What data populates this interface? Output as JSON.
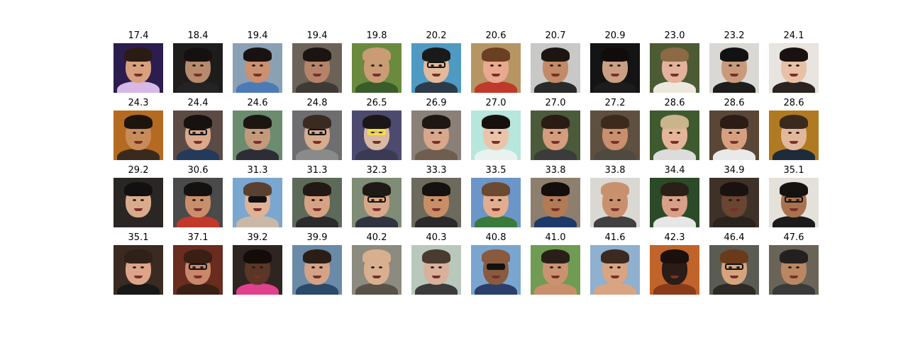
{
  "faces": [
    {
      "label": "17.4",
      "bg": "#2c1d4f",
      "skin": "#d8a07e",
      "hair": "#2a1b14",
      "shirt": "#d7b8e6"
    },
    {
      "label": "18.4",
      "bg": "#1f1d1c",
      "skin": "#b68a6c",
      "hair": "#15110f",
      "shirt": "#232323"
    },
    {
      "label": "19.4",
      "bg": "#8aa0b4",
      "skin": "#c99170",
      "hair": "#1a1210",
      "shirt": "#4b7ab5"
    },
    {
      "label": "19.4",
      "bg": "#6b6358",
      "skin": "#b5836a",
      "hair": "#1b1410",
      "shirt": "#3f3a36"
    },
    {
      "label": "19.8",
      "bg": "#6a8a3e",
      "skin": "#c99c76",
      "hair": "#c99c76",
      "shirt": "#3a5c2a"
    },
    {
      "label": "20.2",
      "bg": "#4f9ac2",
      "skin": "#e2b99a",
      "hair": "#1a1a1a",
      "shirt": "#2b3b4a",
      "glasses": "on"
    },
    {
      "label": "20.6",
      "bg": "#b69564",
      "skin": "#e8a98e",
      "hair": "#6b3f22",
      "shirt": "#c0392b"
    },
    {
      "label": "20.7",
      "bg": "#c8c9c7",
      "skin": "#c28a66",
      "hair": "#1d1512",
      "shirt": "#2a2a2a"
    },
    {
      "label": "20.9",
      "bg": "#141414",
      "skin": "#c9a083",
      "hair": "#0f0c0a",
      "shirt": "#1c1c1c"
    },
    {
      "label": "23.0",
      "bg": "#4d5b34",
      "skin": "#e2b39a",
      "hair": "#8b6a45",
      "shirt": "#ece8dc"
    },
    {
      "label": "23.2",
      "bg": "#d9d8d4",
      "skin": "#c99a7a",
      "hair": "#121212",
      "shirt": "#1d1d1d"
    },
    {
      "label": "24.1",
      "bg": "#e8e4df",
      "skin": "#e7c0a6",
      "hair": "#1a1210",
      "shirt": "#2b2320"
    },
    {
      "label": "24.3",
      "bg": "#b56a22",
      "skin": "#c88b5a",
      "hair": "#1d140e",
      "shirt": "#3a2a1e"
    },
    {
      "label": "24.4",
      "bg": "#5c4b44",
      "skin": "#d9a98a",
      "hair": "#161210",
      "shirt": "#243a5a",
      "glasses": "on"
    },
    {
      "label": "24.6",
      "bg": "#6b8c6e",
      "skin": "#c49a7c",
      "hair": "#1b1612",
      "shirt": "#2d2d35"
    },
    {
      "label": "24.8",
      "bg": "#6e6e70",
      "skin": "#d6ab8e",
      "hair": "#3a2b22",
      "shirt": "#8a8a8a",
      "glasses": "on"
    },
    {
      "label": "26.5",
      "bg": "#4d4a6f",
      "skin": "#d9b9a4",
      "hair": "#1b1718",
      "shirt": "#3a3a55",
      "glasses": "yellow"
    },
    {
      "label": "26.9",
      "bg": "#8a8078",
      "skin": "#d7a88b",
      "hair": "#1e1712",
      "shirt": "#6f5d4f"
    },
    {
      "label": "27.0",
      "bg": "#b7e6dc",
      "skin": "#e9c4aa",
      "hair": "#16110f",
      "shirt": "#e9f2ee"
    },
    {
      "label": "27.0",
      "bg": "#4a5a3b",
      "skin": "#d49d7d",
      "hair": "#2a1c14",
      "shirt": "#3b3b3b"
    },
    {
      "label": "27.2",
      "bg": "#5e5040",
      "skin": "#c98f6e",
      "hair": "#3d2a1c",
      "shirt": "#4f4a40"
    },
    {
      "label": "28.6",
      "bg": "#3f5a2e",
      "skin": "#e4b59a",
      "hair": "#c9b48c",
      "shirt": "#dcdcdc"
    },
    {
      "label": "28.6",
      "bg": "#5a4636",
      "skin": "#d6a080",
      "hair": "#2b1d15",
      "shirt": "#e9e9e9"
    },
    {
      "label": "28.6",
      "bg": "#b07a22",
      "skin": "#e2b89a",
      "hair": "#3a2a1e",
      "shirt": "#1d2b3a"
    },
    {
      "label": "29.2",
      "bg": "#2a2624",
      "skin": "#d9ab8c",
      "hair": "#121010",
      "shirt": "#2b2625"
    },
    {
      "label": "30.6",
      "bg": "#4a4a4a",
      "skin": "#c98f6c",
      "hair": "#141210",
      "shirt": "#c0392b"
    },
    {
      "label": "31.3",
      "bg": "#7aa7cf",
      "skin": "#e0b296",
      "hair": "#5a4030",
      "shirt": "#c9b8a8",
      "glasses": "dark"
    },
    {
      "label": "31.3",
      "bg": "#5d6a5a",
      "skin": "#d6a284",
      "hair": "#231914",
      "shirt": "#2b2b2b"
    },
    {
      "label": "32.3",
      "bg": "#7f8d77",
      "skin": "#d9a88a",
      "hair": "#1f1a16",
      "shirt": "#2f3440",
      "glasses": "on"
    },
    {
      "label": "33.3",
      "bg": "#6c6a5c",
      "skin": "#c98e66",
      "hair": "#15110f",
      "shirt": "#2a2a2a"
    },
    {
      "label": "33.5",
      "bg": "#6c95c8",
      "skin": "#e1ad8e",
      "hair": "#6a4a30",
      "shirt": "#3a7a3a"
    },
    {
      "label": "33.8",
      "bg": "#8e7e6d",
      "skin": "#b27a55",
      "hair": "#140f0c",
      "shirt": "#1d3a6a"
    },
    {
      "label": "33.8",
      "bg": "#dad8d3",
      "skin": "#c9906e",
      "hair": "#c9906e",
      "shirt": "#404040"
    },
    {
      "label": "34.4",
      "bg": "#2c4a27",
      "skin": "#d9a088",
      "hair": "#2b2018",
      "shirt": "#e6e6e6"
    },
    {
      "label": "34.9",
      "bg": "#3e3228",
      "skin": "#6a4532",
      "hair": "#1a1210",
      "shirt": "#2a221c"
    },
    {
      "label": "35.1",
      "bg": "#e4e1db",
      "skin": "#a9724f",
      "hair": "#161210",
      "shirt": "#1b1b1b",
      "glasses": "on"
    },
    {
      "label": "35.1",
      "bg": "#3a2a22",
      "skin": "#dca58a",
      "hair": "#2f2018",
      "shirt": "#181818"
    },
    {
      "label": "37.1",
      "bg": "#6a2c1f",
      "skin": "#c9876c",
      "hair": "#3a1f14",
      "shirt": "#3a1f14",
      "glasses": "on"
    },
    {
      "label": "39.2",
      "bg": "#2f2520",
      "skin": "#5a3626",
      "hair": "#140c08",
      "shirt": "#e0408c"
    },
    {
      "label": "39.9",
      "bg": "#6a8aa8",
      "skin": "#d4a286",
      "hair": "#2a1e16",
      "shirt": "#2b4a6a"
    },
    {
      "label": "40.2",
      "bg": "#8d8a80",
      "skin": "#d9b08f",
      "hair": "#d9b08f",
      "shirt": "#5a5248"
    },
    {
      "label": "40.3",
      "bg": "#b9c8bd",
      "skin": "#d9b09a",
      "hair": "#4a3a30",
      "shirt": "#3b3b3b"
    },
    {
      "label": "40.8",
      "bg": "#7aa5cf",
      "skin": "#8a5a3e",
      "hair": "#8a5a3e",
      "shirt": "#2b3f6a",
      "glasses": "dark"
    },
    {
      "label": "41.0",
      "bg": "#6f9b52",
      "skin": "#c99372",
      "hair": "#2a1f18",
      "shirt": "#c98f6c"
    },
    {
      "label": "41.6",
      "bg": "#8fb0cf",
      "skin": "#d9a482",
      "hair": "#3a2a20",
      "shirt": "#d9a482"
    },
    {
      "label": "42.3",
      "bg": "#c1642b",
      "skin": "#2a1c16",
      "hair": "#1a110d",
      "shirt": "#8a3c1a"
    },
    {
      "label": "46.4",
      "bg": "#5a5c54",
      "skin": "#d6a47c",
      "hair": "#6b3a1c",
      "shirt": "#2d2a26",
      "glasses": "on"
    },
    {
      "label": "47.6",
      "bg": "#6a6458",
      "skin": "#b98762",
      "hair": "#242020",
      "shirt": "#3a3a3a"
    }
  ]
}
